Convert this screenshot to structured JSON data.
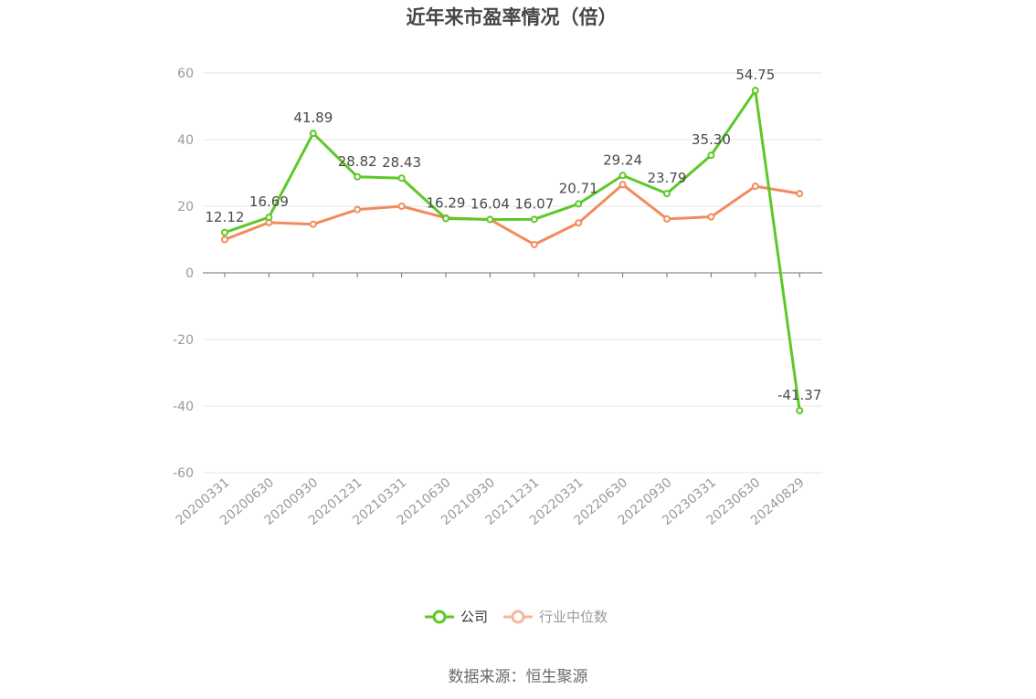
{
  "chart_data": {
    "type": "line",
    "title": "近年来市盈率情况（倍）",
    "categories": [
      "20200331",
      "20200630",
      "20200930",
      "20201231",
      "20210331",
      "20210630",
      "20210930",
      "20211231",
      "20220331",
      "20220630",
      "20220930",
      "20230331",
      "20230630",
      "20240829"
    ],
    "ylim": [
      -60,
      60
    ],
    "yticks": [
      60,
      40,
      20,
      0,
      -20,
      -40,
      -60
    ],
    "ytick_labels": [
      "60",
      "40",
      "20",
      "0",
      "-20",
      "-40",
      "-60"
    ],
    "grid": true,
    "legend_position": "bottom",
    "series": [
      {
        "name": "公司",
        "color": "#5cc928",
        "values": [
          12.12,
          16.69,
          41.89,
          28.82,
          28.43,
          16.29,
          16.04,
          16.07,
          20.71,
          29.24,
          23.79,
          35.3,
          54.75,
          -41.37
        ],
        "labels": [
          "12.12",
          "16.69",
          "41.89",
          "28.82",
          "28.43",
          "16.29",
          "16.04",
          "16.07",
          "20.71",
          "29.24",
          "23.79",
          "35.30",
          "54.75",
          "-41.37"
        ]
      },
      {
        "name": "行业中位数",
        "color": "#f28b5c",
        "legend_color": "#f5b79c",
        "values": [
          10.0,
          15.1,
          14.6,
          19.0,
          20.0,
          16.5,
          16.0,
          8.5,
          15.0,
          26.5,
          16.2,
          16.8,
          26.0,
          23.8
        ]
      }
    ],
    "source": "数据来源：恒生聚源"
  }
}
